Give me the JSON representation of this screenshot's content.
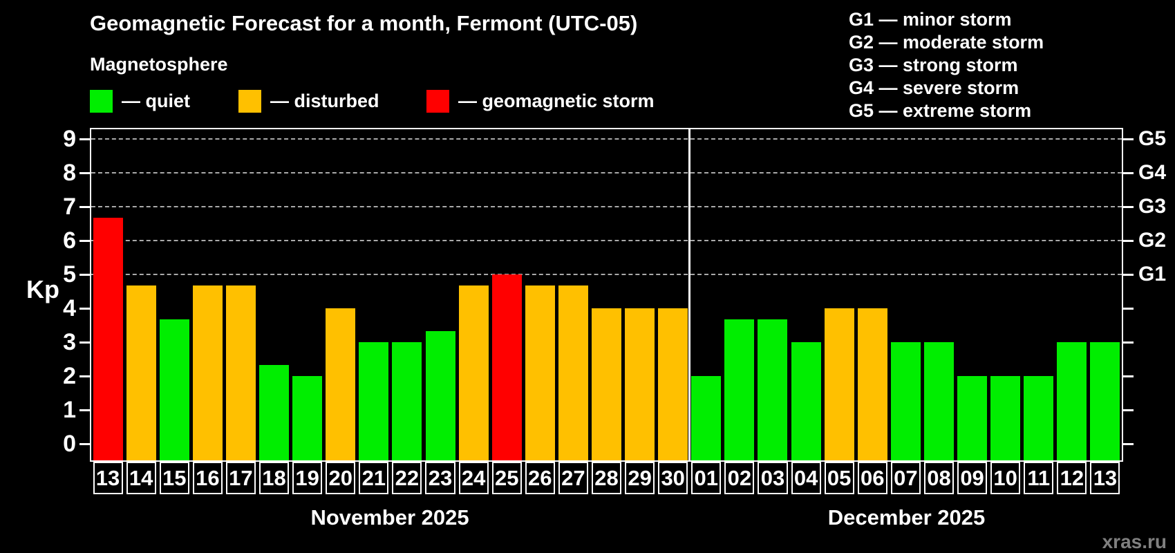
{
  "title": "Geomagnetic Forecast for a month, Fermont (UTC-05)",
  "legend": {
    "heading": "Magnetosphere",
    "items": [
      {
        "key": "quiet",
        "label": "— quiet",
        "color": "#00EE00"
      },
      {
        "key": "disturbed",
        "label": "— disturbed",
        "color": "#FFC000"
      },
      {
        "key": "storm",
        "label": "— geomagnetic storm",
        "color": "#FF0000"
      }
    ]
  },
  "g_legend": [
    "G1 — minor storm",
    "G2 — moderate storm",
    "G3 — strong storm",
    "G4 — severe storm",
    "G5 — extreme storm"
  ],
  "watermark": "xras.ru",
  "chart_data": {
    "type": "bar",
    "title": "Geomagnetic Forecast for a month, Fermont (UTC-05)",
    "ylabel": "Kp",
    "ylim": [
      0,
      9.35
    ],
    "yticks": [
      0,
      1,
      2,
      3,
      4,
      5,
      6,
      7,
      8,
      9
    ],
    "gridlines": [
      5,
      6,
      7,
      8,
      9
    ],
    "grid_style": "dashed",
    "legend_position": "top-left",
    "right_axis": [
      {
        "value": 5,
        "label": "G1"
      },
      {
        "value": 6,
        "label": "G2"
      },
      {
        "value": 7,
        "label": "G3"
      },
      {
        "value": 8,
        "label": "G4"
      },
      {
        "value": 9,
        "label": "G5"
      }
    ],
    "colors": {
      "quiet": "#00EE00",
      "disturbed": "#FFC000",
      "storm": "#FF0000"
    },
    "months": [
      {
        "label": "November 2025",
        "days": 18
      },
      {
        "label": "December 2025",
        "days": 13
      }
    ],
    "categories": [
      "13",
      "14",
      "15",
      "16",
      "17",
      "18",
      "19",
      "20",
      "21",
      "22",
      "23",
      "24",
      "25",
      "26",
      "27",
      "28",
      "29",
      "30",
      "01",
      "02",
      "03",
      "04",
      "05",
      "06",
      "07",
      "08",
      "09",
      "10",
      "11",
      "12",
      "13"
    ],
    "values": [
      6.67,
      4.67,
      3.67,
      4.67,
      4.67,
      2.33,
      2.0,
      4.0,
      3.0,
      3.0,
      3.33,
      4.67,
      5.0,
      4.67,
      4.67,
      4.0,
      4.0,
      4.0,
      2.0,
      3.67,
      3.67,
      3.0,
      4.0,
      4.0,
      3.0,
      3.0,
      2.0,
      2.0,
      2.0,
      3.0,
      3.0
    ],
    "status": [
      "storm",
      "disturbed",
      "quiet",
      "disturbed",
      "disturbed",
      "quiet",
      "quiet",
      "disturbed",
      "quiet",
      "quiet",
      "quiet",
      "disturbed",
      "storm",
      "disturbed",
      "disturbed",
      "disturbed",
      "disturbed",
      "disturbed",
      "quiet",
      "quiet",
      "quiet",
      "quiet",
      "disturbed",
      "disturbed",
      "quiet",
      "quiet",
      "quiet",
      "quiet",
      "quiet",
      "quiet",
      "quiet"
    ]
  }
}
